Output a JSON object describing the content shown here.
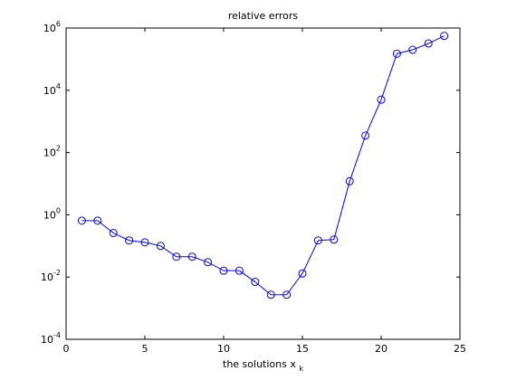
{
  "chart_data": {
    "type": "line",
    "title": "relative errors",
    "xlabel": {
      "text": "the solutions x",
      "subscript": "k"
    },
    "ylabel": "",
    "xlim": [
      0,
      25
    ],
    "ylim": [
      0.0001,
      1000000
    ],
    "yscale": "log",
    "xticks": [
      0,
      5,
      10,
      15,
      20,
      25
    ],
    "xtick_labels": [
      "0",
      "5",
      "10",
      "15",
      "20",
      "25"
    ],
    "yticks": [
      0.0001,
      0.01,
      1,
      100,
      10000,
      1000000
    ],
    "ytick_labels": [
      {
        "base": "10",
        "exp": "-4"
      },
      {
        "base": "10",
        "exp": "-2"
      },
      {
        "base": "10",
        "exp": "0"
      },
      {
        "base": "10",
        "exp": "2"
      },
      {
        "base": "10",
        "exp": "4"
      },
      {
        "base": "10",
        "exp": "6"
      }
    ],
    "grid": false,
    "legend": null,
    "series": [
      {
        "color": "#0000ff",
        "marker": "circle",
        "x": [
          1,
          2,
          3,
          4,
          5,
          6,
          7,
          8,
          9,
          10,
          11,
          12,
          13,
          14,
          15,
          16,
          17,
          18,
          19,
          20,
          21,
          22,
          23,
          24
        ],
        "y": [
          0.65,
          0.65,
          0.26,
          0.15,
          0.13,
          0.1,
          0.045,
          0.045,
          0.03,
          0.016,
          0.016,
          0.007,
          0.0027,
          0.0027,
          0.013,
          0.15,
          0.16,
          12,
          350,
          5000,
          150000,
          200000,
          320000,
          560000
        ]
      }
    ]
  }
}
